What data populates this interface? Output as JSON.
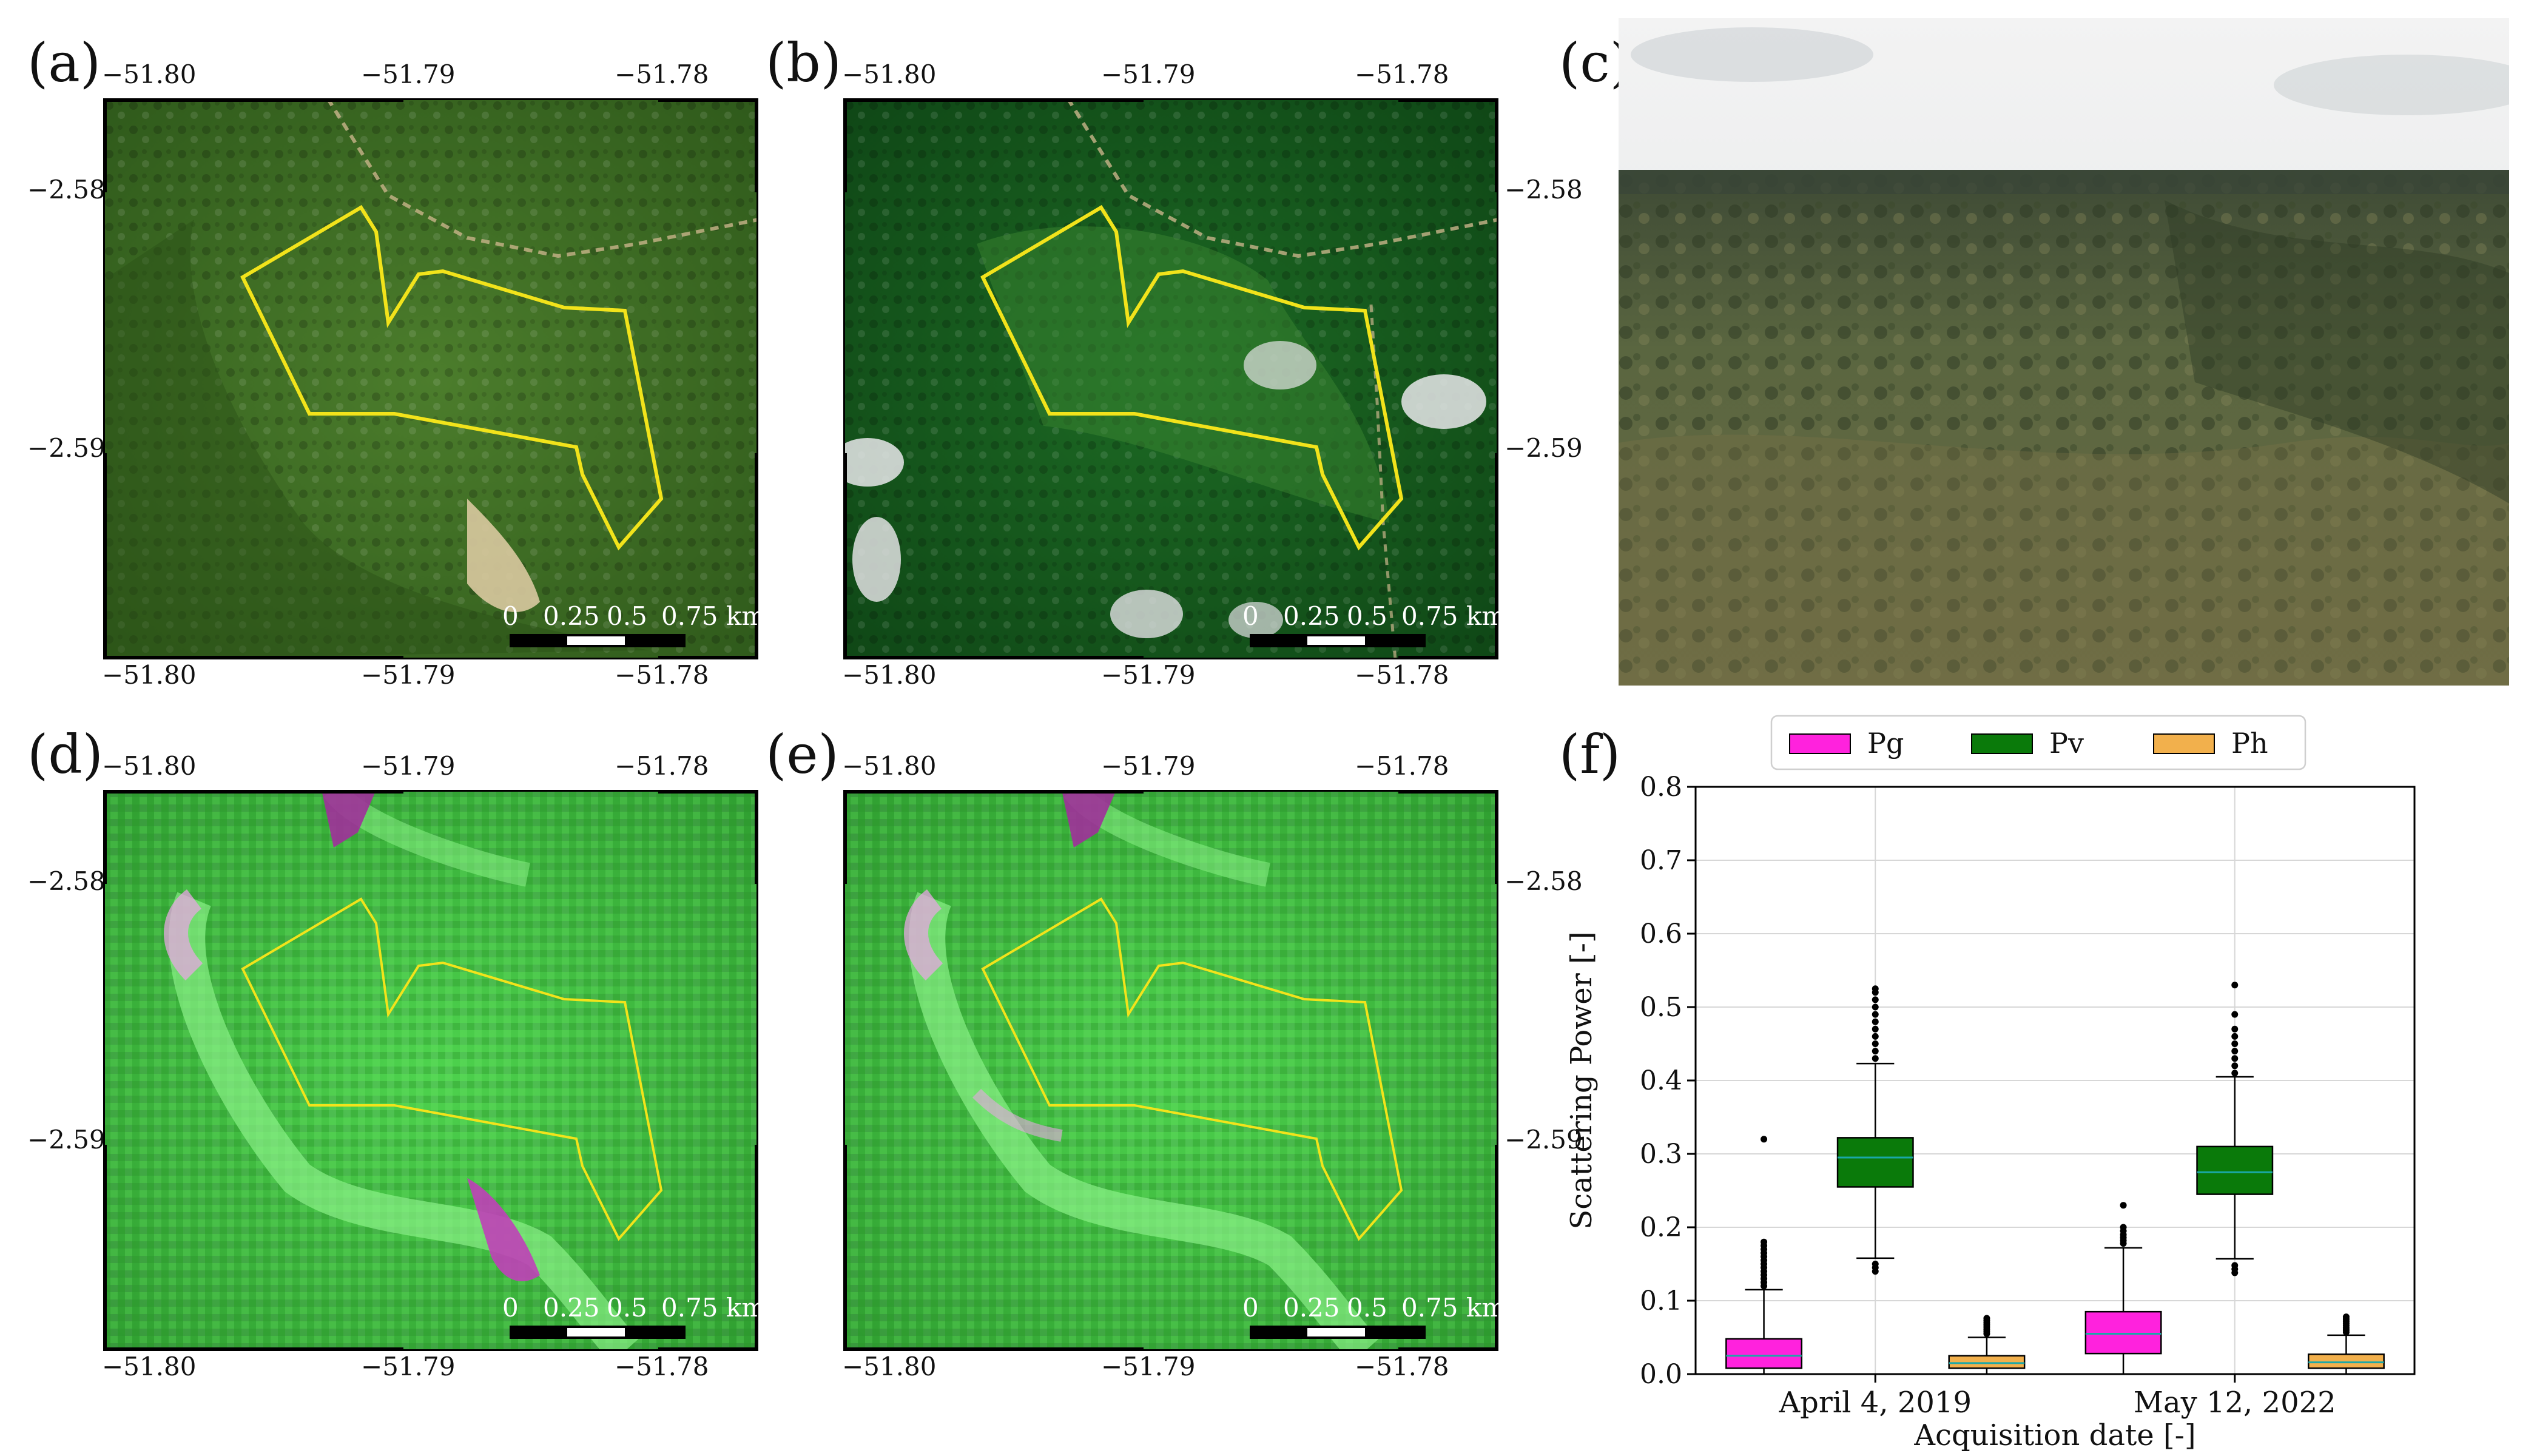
{
  "figure": {
    "panel_labels": [
      "(a)",
      "(b)",
      "(c)",
      "(d)",
      "(e)",
      "(f)"
    ],
    "map_ticks": {
      "lon": [
        "−51.80",
        "−51.79",
        "−51.78"
      ],
      "lat": [
        "−2.58",
        "−2.59"
      ]
    },
    "scalebar": {
      "labels": [
        "0",
        "0.25",
        "0.5",
        "0.75 km"
      ]
    }
  },
  "colors": {
    "optical_forest": "#3f6f24",
    "s2_forest": "#14561c",
    "sar_green": "#3fbf3f",
    "aoi_outline": "#f2e31b",
    "Pg": "#ff22dd",
    "Pv": "#0a7a0a",
    "Ph": "#f2b04c"
  },
  "chart_data": {
    "type": "box",
    "xlabel": "Acquisition date [-]",
    "ylabel": "Scattering Power [-]",
    "ylim": [
      0,
      0.8
    ],
    "yticks": [
      "0.0",
      "0.1",
      "0.2",
      "0.3",
      "0.4",
      "0.5",
      "0.6",
      "0.7",
      "0.8"
    ],
    "categories": [
      "April 4, 2019",
      "May 12, 2022"
    ],
    "legend": {
      "position": "top",
      "entries": [
        "Pg",
        "Pv",
        "Ph"
      ]
    },
    "grid": true,
    "series": [
      {
        "name": "Pg",
        "color": "#ff22dd",
        "boxes": [
          {
            "q1": 0.008,
            "median": 0.025,
            "q3": 0.048,
            "whisker_low": 0.0,
            "whisker_high": 0.115,
            "outliers": [
              0.12,
              0.125,
              0.13,
              0.135,
              0.14,
              0.145,
              0.15,
              0.155,
              0.16,
              0.165,
              0.17,
              0.175,
              0.18,
              0.32
            ]
          },
          {
            "q1": 0.028,
            "median": 0.055,
            "q3": 0.085,
            "whisker_low": 0.0,
            "whisker_high": 0.172,
            "outliers": [
              0.178,
              0.182,
              0.186,
              0.19,
              0.195,
              0.2,
              0.23
            ]
          }
        ]
      },
      {
        "name": "Pv",
        "color": "#0a7a0a",
        "boxes": [
          {
            "q1": 0.255,
            "median": 0.295,
            "q3": 0.322,
            "whisker_low": 0.158,
            "whisker_high": 0.423,
            "outliers": [
              0.14,
              0.145,
              0.15,
              0.43,
              0.44,
              0.45,
              0.46,
              0.47,
              0.48,
              0.49,
              0.5,
              0.51,
              0.52,
              0.525
            ]
          },
          {
            "q1": 0.245,
            "median": 0.275,
            "q3": 0.31,
            "whisker_low": 0.157,
            "whisker_high": 0.405,
            "outliers": [
              0.138,
              0.143,
              0.148,
              0.41,
              0.42,
              0.43,
              0.44,
              0.45,
              0.46,
              0.47,
              0.49,
              0.53
            ]
          }
        ]
      },
      {
        "name": "Ph",
        "color": "#f2b04c",
        "boxes": [
          {
            "q1": 0.008,
            "median": 0.015,
            "q3": 0.025,
            "whisker_low": 0.0,
            "whisker_high": 0.05,
            "outliers": [
              0.055,
              0.058,
              0.061,
              0.064,
              0.067,
              0.07,
              0.073,
              0.076
            ]
          },
          {
            "q1": 0.008,
            "median": 0.016,
            "q3": 0.027,
            "whisker_low": 0.0,
            "whisker_high": 0.053,
            "outliers": [
              0.057,
              0.06,
              0.063,
              0.066,
              0.069,
              0.072,
              0.075,
              0.078
            ]
          }
        ]
      }
    ]
  }
}
